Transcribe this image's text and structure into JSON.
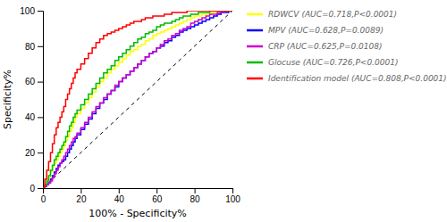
{
  "chart_data": {
    "type": "step",
    "xlabel": "100% - Specificity%",
    "ylabel": "Specificity%",
    "xlim": [
      0,
      100
    ],
    "ylim": [
      0,
      100
    ],
    "xticks": [
      0,
      20,
      40,
      60,
      80,
      100
    ],
    "yticks": [
      0,
      20,
      40,
      60,
      80,
      100
    ],
    "grid": false,
    "legend": "right",
    "x": [
      0,
      1,
      2,
      3,
      4,
      5,
      6,
      7,
      8,
      9,
      10,
      11,
      12,
      13,
      14,
      15,
      16,
      17,
      18,
      20,
      22,
      24,
      26,
      28,
      30,
      32,
      34,
      36,
      38,
      40,
      42,
      44,
      46,
      48,
      50,
      52,
      54,
      56,
      58,
      60,
      62,
      64,
      66,
      68,
      70,
      72,
      74,
      76,
      78,
      80,
      82,
      84,
      86,
      88,
      90,
      92,
      94,
      96,
      98,
      100
    ],
    "series": [
      {
        "name": "RDWCV (AUC=0.718,P<0.0001)",
        "color": "#ffff00",
        "values": [
          0,
          2,
          4,
          6,
          9,
          12,
          14,
          16,
          18,
          20,
          22,
          24,
          27,
          29,
          32,
          34,
          37,
          40,
          42,
          45,
          48,
          51,
          54,
          57,
          60,
          62,
          65,
          67,
          69,
          71,
          73,
          75,
          77,
          78,
          80,
          81,
          83,
          84,
          86,
          87,
          88,
          89,
          90,
          91,
          92,
          93,
          94,
          95,
          96,
          97,
          97,
          98,
          98,
          99,
          99,
          99,
          100,
          100,
          100,
          100
        ]
      },
      {
        "name": "MPV (AUC=0.628,P=0.0089)",
        "color": "#0000ff",
        "values": [
          0,
          1,
          2,
          3,
          5,
          7,
          9,
          11,
          13,
          14,
          15,
          16,
          18,
          20,
          22,
          24,
          26,
          28,
          30,
          33,
          36,
          39,
          42,
          45,
          48,
          50,
          53,
          55,
          57,
          60,
          62,
          64,
          66,
          68,
          70,
          72,
          74,
          76,
          77,
          79,
          80,
          82,
          83,
          85,
          86,
          88,
          89,
          90,
          91,
          92,
          93,
          94,
          95,
          96,
          97,
          98,
          99,
          99,
          100,
          100
        ]
      },
      {
        "name": "CRP (AUC=0.625,P=0.0108)",
        "color": "#cc00cc",
        "values": [
          0,
          1,
          2,
          3,
          4,
          6,
          8,
          10,
          12,
          14,
          16,
          18,
          20,
          22,
          24,
          26,
          28,
          29,
          31,
          34,
          37,
          40,
          43,
          46,
          48,
          51,
          53,
          55,
          58,
          60,
          62,
          64,
          66,
          68,
          70,
          72,
          74,
          76,
          77,
          79,
          81,
          83,
          84,
          86,
          87,
          89,
          90,
          91,
          93,
          94,
          95,
          96,
          97,
          98,
          98,
          99,
          99,
          100,
          100,
          100
        ]
      },
      {
        "name": "Glocuse (AUC=0.726,P<0.0001)",
        "color": "#00bb00",
        "values": [
          0,
          2,
          4,
          7,
          10,
          13,
          16,
          18,
          20,
          22,
          24,
          26,
          29,
          32,
          35,
          37,
          40,
          42,
          44,
          47,
          50,
          53,
          56,
          59,
          62,
          65,
          67,
          69,
          72,
          74,
          76,
          78,
          80,
          82,
          84,
          85,
          87,
          88,
          89,
          91,
          92,
          93,
          93,
          94,
          95,
          96,
          97,
          97,
          98,
          98,
          99,
          99,
          99,
          100,
          100,
          100,
          100,
          100,
          100,
          100
        ]
      },
      {
        "name": "Identification model (AUC=0.808,P<0.0001)",
        "color": "#ff0000",
        "values": [
          0,
          5,
          10,
          15,
          20,
          25,
          30,
          34,
          37,
          40,
          43,
          46,
          50,
          53,
          56,
          59,
          62,
          65,
          67,
          70,
          73,
          76,
          79,
          82,
          84,
          86,
          87,
          88,
          89,
          90,
          91,
          92,
          93,
          94,
          94,
          95,
          96,
          96,
          97,
          97,
          97,
          98,
          98,
          99,
          99,
          99,
          99,
          100,
          100,
          100,
          100,
          100,
          100,
          100,
          100,
          100,
          100,
          100,
          100,
          100
        ]
      }
    ]
  }
}
